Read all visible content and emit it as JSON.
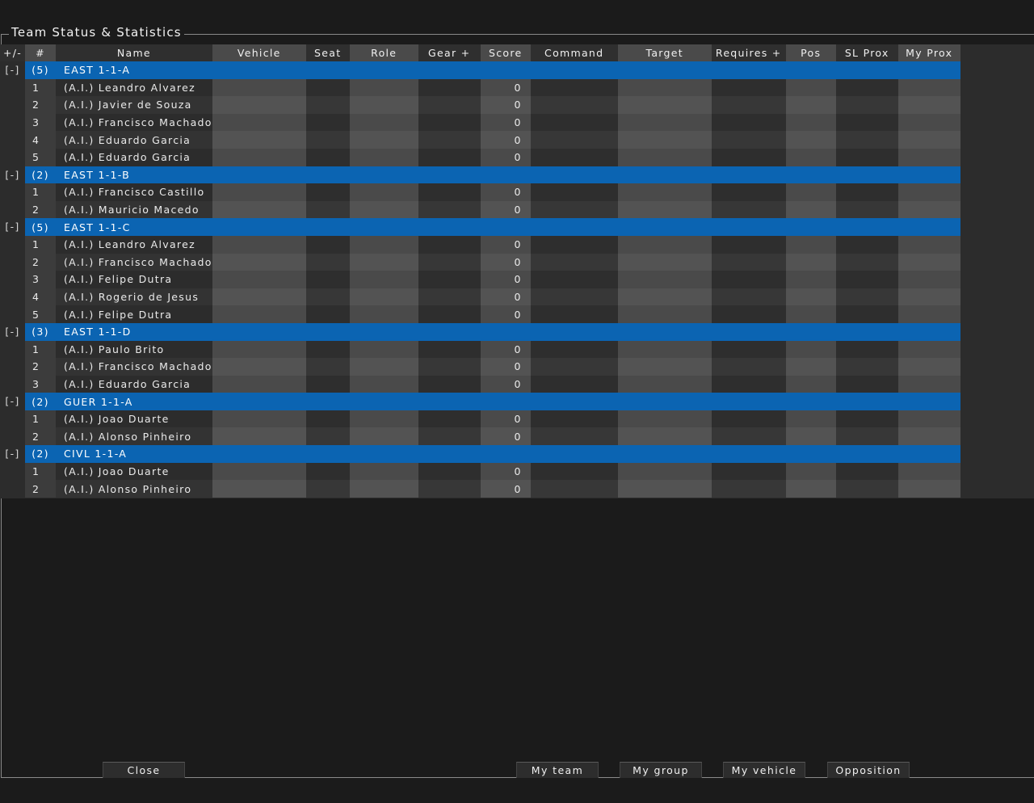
{
  "window": {
    "title": "Team Status & Statistics"
  },
  "columns": {
    "toggle": "+/-",
    "num": "#",
    "name": "Name",
    "vehicle": "Vehicle",
    "seat": "Seat",
    "role": "Role",
    "gear": "Gear +",
    "score": "Score",
    "command": "Command",
    "target": "Target",
    "requires": "Requires +",
    "pos": "Pos",
    "sl_prox": "SL Prox",
    "my_prox": "My Prox"
  },
  "groups": [
    {
      "toggle": "[-]",
      "count": "(5)",
      "name": "EAST 1-1-A",
      "members": [
        {
          "num": "1",
          "name": "(A.I.) Leandro Alvarez",
          "score": "0"
        },
        {
          "num": "2",
          "name": "(A.I.) Javier de Souza",
          "score": "0"
        },
        {
          "num": "3",
          "name": "(A.I.) Francisco Machado",
          "score": "0"
        },
        {
          "num": "4",
          "name": "(A.I.) Eduardo Garcia",
          "score": "0"
        },
        {
          "num": "5",
          "name": "(A.I.) Eduardo Garcia",
          "score": "0"
        }
      ]
    },
    {
      "toggle": "[-]",
      "count": "(2)",
      "name": "EAST 1-1-B",
      "members": [
        {
          "num": "1",
          "name": "(A.I.) Francisco Castillo",
          "score": "0"
        },
        {
          "num": "2",
          "name": "(A.I.) Mauricio Macedo",
          "score": "0"
        }
      ]
    },
    {
      "toggle": "[-]",
      "count": "(5)",
      "name": "EAST 1-1-C",
      "members": [
        {
          "num": "1",
          "name": "(A.I.) Leandro Alvarez",
          "score": "0"
        },
        {
          "num": "2",
          "name": "(A.I.) Francisco Machado",
          "score": "0"
        },
        {
          "num": "3",
          "name": "(A.I.) Felipe Dutra",
          "score": "0"
        },
        {
          "num": "4",
          "name": "(A.I.) Rogerio de Jesus",
          "score": "0"
        },
        {
          "num": "5",
          "name": "(A.I.) Felipe Dutra",
          "score": "0"
        }
      ]
    },
    {
      "toggle": "[-]",
      "count": "(3)",
      "name": "EAST 1-1-D",
      "members": [
        {
          "num": "1",
          "name": "(A.I.) Paulo Brito",
          "score": "0"
        },
        {
          "num": "2",
          "name": "(A.I.) Francisco Machado",
          "score": "0"
        },
        {
          "num": "3",
          "name": "(A.I.) Eduardo Garcia",
          "score": "0"
        }
      ]
    },
    {
      "toggle": "[-]",
      "count": "(2)",
      "name": "GUER 1-1-A",
      "members": [
        {
          "num": "1",
          "name": "(A.I.) Joao Duarte",
          "score": "0"
        },
        {
          "num": "2",
          "name": "(A.I.) Alonso Pinheiro",
          "score": "0"
        }
      ]
    },
    {
      "toggle": "[-]",
      "count": "(2)",
      "name": "CIVL 1-1-A",
      "members": [
        {
          "num": "1",
          "name": "(A.I.) Joao Duarte",
          "score": "0"
        },
        {
          "num": "2",
          "name": "(A.I.) Alonso Pinheiro",
          "score": "0"
        }
      ]
    }
  ],
  "buttons": {
    "close": "Close",
    "my_team": "My team",
    "my_group": "My group",
    "my_vehicle": "My vehicle",
    "opposition": "Opposition"
  },
  "colors": {
    "group_row": "#0b64b2",
    "background": "#1b1b1b"
  }
}
